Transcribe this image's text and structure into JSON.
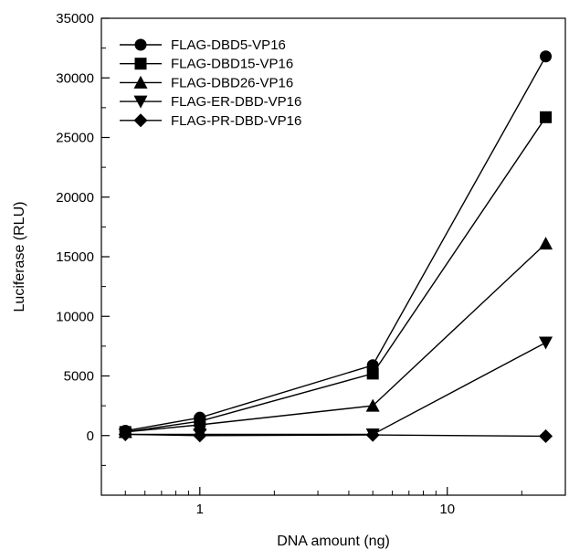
{
  "chart_data": {
    "type": "line",
    "xlabel": "DNA amount (ng)",
    "ylabel": "Luciferase (RLU)",
    "xscale": "log",
    "xlim": [
      0.4,
      30
    ],
    "ylim": [
      -5000,
      35000
    ],
    "xticks_labeled": [
      {
        "value": 1,
        "label": "1"
      },
      {
        "value": 10,
        "label": "10"
      }
    ],
    "yticks": [
      {
        "value": 0,
        "label": "0"
      },
      {
        "value": 5000,
        "label": "5000"
      },
      {
        "value": 10000,
        "label": "10000"
      },
      {
        "value": 15000,
        "label": "15000"
      },
      {
        "value": 20000,
        "label": "20000"
      },
      {
        "value": 25000,
        "label": "25000"
      },
      {
        "value": 30000,
        "label": "30000"
      },
      {
        "value": 35000,
        "label": "35000"
      }
    ],
    "grid": false,
    "legend_position": "top-left",
    "x": [
      0.5,
      1,
      5,
      25
    ],
    "series": [
      {
        "name": "FLAG-DBD5-VP16",
        "marker": "circle",
        "values": [
          400,
          1500,
          5900,
          31800
        ]
      },
      {
        "name": "FLAG-DBD15-VP16",
        "marker": "square",
        "values": [
          300,
          1200,
          5200,
          26700
        ]
      },
      {
        "name": "FLAG-DBD26-VP16",
        "marker": "triangle-up",
        "values": [
          300,
          900,
          2500,
          16100
        ]
      },
      {
        "name": "FLAG-ER-DBD-VP16",
        "marker": "triangle-down",
        "values": [
          100,
          100,
          100,
          7800
        ]
      },
      {
        "name": "FLAG-PR-DBD-VP16",
        "marker": "diamond",
        "values": [
          100,
          0,
          50,
          -50
        ]
      }
    ],
    "colors": {
      "line": "#000000",
      "marker": "#000000"
    }
  }
}
